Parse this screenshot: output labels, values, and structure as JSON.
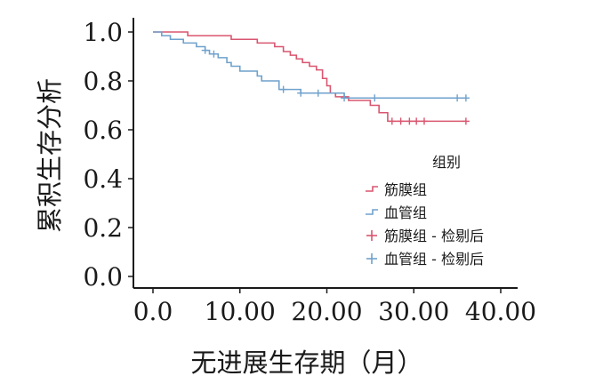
{
  "chart_data": {
    "type": "line",
    "xlabel": "无进展生存期（月）",
    "ylabel": "累积生存分析",
    "xlim": [
      0,
      40
    ],
    "ylim": [
      0,
      1
    ],
    "x_ticks": [
      "0.0",
      "10.00",
      "20.00",
      "30.00",
      "40.00"
    ],
    "y_ticks": [
      "0.0",
      "0.2",
      "0.4",
      "0.6",
      "0.8",
      "1.0"
    ],
    "grid": false,
    "legend": {
      "title": "组别",
      "placement": "right",
      "items": [
        "筋膜组",
        "血管组",
        "筋膜组 - 检剔后",
        "血管组 - 检剔后"
      ]
    },
    "series": [
      {
        "name": "筋膜组",
        "color": "#d9566f",
        "steps": [
          [
            0,
            1.0
          ],
          [
            4,
            0.985
          ],
          [
            9,
            0.97
          ],
          [
            12,
            0.955
          ],
          [
            14,
            0.94
          ],
          [
            15,
            0.92
          ],
          [
            15.8,
            0.905
          ],
          [
            16.5,
            0.89
          ],
          [
            17.2,
            0.875
          ],
          [
            18,
            0.86
          ],
          [
            18.8,
            0.845
          ],
          [
            19.5,
            0.81
          ],
          [
            20,
            0.78
          ],
          [
            20.4,
            0.75
          ],
          [
            21,
            0.735
          ],
          [
            22.5,
            0.72
          ],
          [
            25,
            0.7
          ],
          [
            26,
            0.67
          ],
          [
            27,
            0.635
          ],
          [
            36,
            0.635
          ]
        ],
        "censored": [
          [
            27.5,
            0.635
          ],
          [
            28.5,
            0.635
          ],
          [
            29.5,
            0.635
          ],
          [
            30.3,
            0.635
          ],
          [
            31.2,
            0.635
          ],
          [
            36,
            0.635
          ]
        ]
      },
      {
        "name": "血管组",
        "color": "#6fa1cc",
        "steps": [
          [
            0,
            1.0
          ],
          [
            1,
            0.985
          ],
          [
            2,
            0.97
          ],
          [
            3.5,
            0.955
          ],
          [
            5,
            0.94
          ],
          [
            6,
            0.925
          ],
          [
            6.5,
            0.91
          ],
          [
            7.5,
            0.895
          ],
          [
            8.5,
            0.875
          ],
          [
            9,
            0.86
          ],
          [
            10,
            0.84
          ],
          [
            12,
            0.82
          ],
          [
            12.5,
            0.8
          ],
          [
            14.5,
            0.765
          ],
          [
            17,
            0.75
          ],
          [
            22,
            0.73
          ],
          [
            36,
            0.73
          ]
        ],
        "censored": [
          [
            6,
            0.925
          ],
          [
            7,
            0.91
          ],
          [
            15,
            0.765
          ],
          [
            17,
            0.75
          ],
          [
            19,
            0.75
          ],
          [
            22,
            0.73
          ],
          [
            25.5,
            0.73
          ],
          [
            35,
            0.73
          ],
          [
            36,
            0.73
          ]
        ]
      }
    ]
  }
}
